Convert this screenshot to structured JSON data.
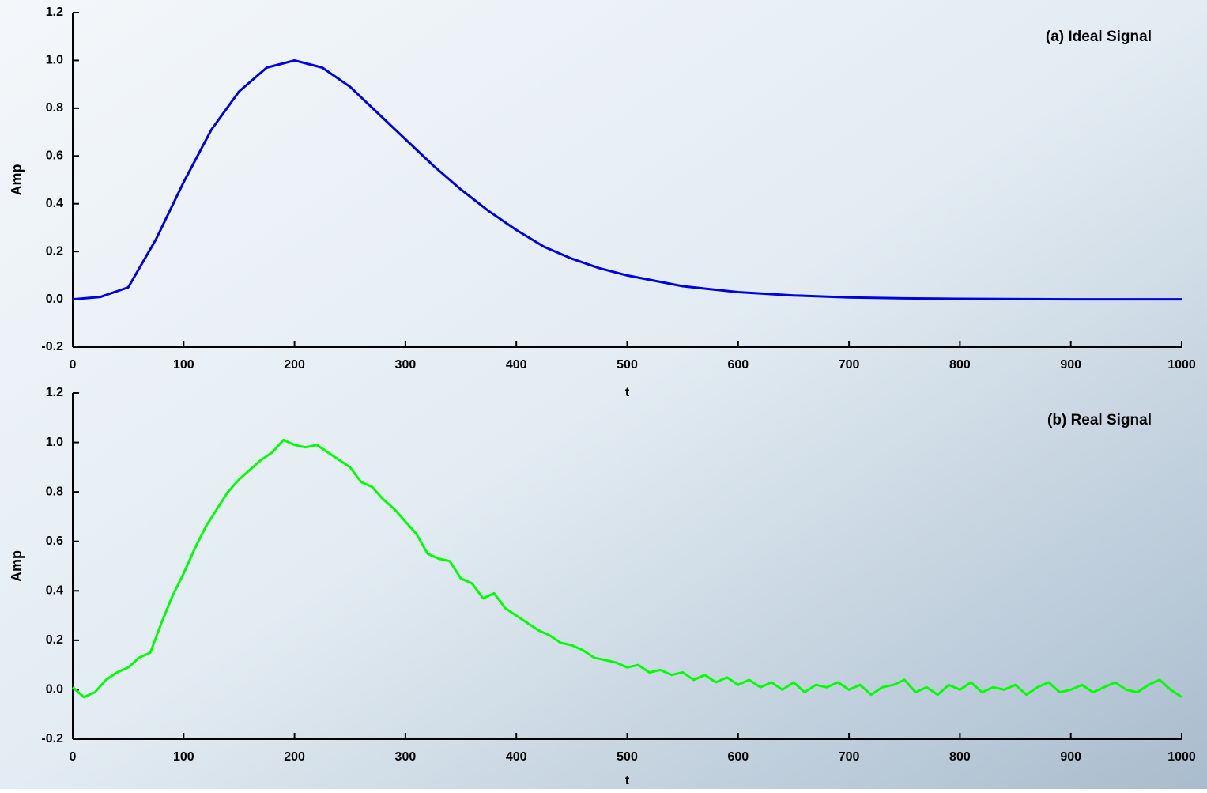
{
  "chart_data": [
    {
      "type": "line",
      "title": "(a)  Ideal Signal",
      "x_label": "t",
      "y_label": "Amp",
      "color": "#0000e0",
      "x": [
        0,
        25,
        50,
        75,
        100,
        125,
        150,
        175,
        200,
        225,
        250,
        275,
        300,
        325,
        350,
        375,
        400,
        425,
        450,
        475,
        500,
        550,
        600,
        650,
        700,
        750,
        800,
        900,
        1000
      ],
      "values": [
        0,
        0.01,
        0.05,
        0.25,
        0.49,
        0.71,
        0.87,
        0.97,
        1.0,
        0.97,
        0.89,
        0.78,
        0.67,
        0.56,
        0.46,
        0.37,
        0.29,
        0.22,
        0.17,
        0.13,
        0.1,
        0.055,
        0.03,
        0.016,
        0.008,
        0.004,
        0.002,
        0,
        0
      ],
      "xlim": [
        0,
        1000
      ],
      "xticks": [
        0,
        100,
        200,
        300,
        400,
        500,
        600,
        700,
        800,
        900,
        1000
      ],
      "ylim": [
        -0.2,
        1.2
      ],
      "yticks": [
        -0.2,
        {
          "value": 0,
          "label": "0.0"
        },
        0.2,
        0.4,
        0.6,
        0.8,
        {
          "value": 1,
          "label": "1.0"
        },
        1.2
      ]
    },
    {
      "type": "line",
      "title": "(b)  Real Signal",
      "x_label": "t",
      "y_label": "Amp",
      "color": "#00ff00",
      "x": [
        0,
        10,
        20,
        30,
        40,
        50,
        60,
        70,
        80,
        90,
        100,
        110,
        120,
        130,
        140,
        150,
        160,
        170,
        180,
        190,
        200,
        210,
        220,
        230,
        240,
        250,
        260,
        270,
        280,
        290,
        300,
        310,
        320,
        330,
        340,
        350,
        360,
        370,
        380,
        390,
        400,
        410,
        420,
        430,
        440,
        450,
        460,
        470,
        480,
        490,
        500,
        510,
        520,
        530,
        540,
        550,
        560,
        570,
        580,
        590,
        600,
        610,
        620,
        630,
        640,
        650,
        660,
        670,
        680,
        690,
        700,
        710,
        720,
        730,
        740,
        750,
        760,
        770,
        780,
        790,
        800,
        810,
        820,
        830,
        840,
        850,
        860,
        870,
        880,
        890,
        900,
        910,
        920,
        930,
        940,
        950,
        960,
        970,
        980,
        990,
        1000
      ],
      "values": [
        0.01,
        -0.03,
        -0.01,
        0.04,
        0.07,
        0.09,
        0.13,
        0.15,
        0.27,
        0.38,
        0.47,
        0.57,
        0.66,
        0.73,
        0.8,
        0.85,
        0.89,
        0.93,
        0.96,
        1.01,
        0.99,
        0.98,
        0.99,
        0.96,
        0.93,
        0.9,
        0.84,
        0.82,
        0.77,
        0.73,
        0.68,
        0.63,
        0.55,
        0.53,
        0.52,
        0.45,
        0.43,
        0.37,
        0.39,
        0.33,
        0.3,
        0.27,
        0.24,
        0.22,
        0.19,
        0.18,
        0.16,
        0.13,
        0.12,
        0.11,
        0.09,
        0.1,
        0.07,
        0.08,
        0.06,
        0.07,
        0.04,
        0.06,
        0.03,
        0.05,
        0.02,
        0.04,
        0.01,
        0.03,
        0,
        0.03,
        -0.01,
        0.02,
        0.01,
        0.03,
        0,
        0.02,
        -0.02,
        0.01,
        0.02,
        0.04,
        -0.01,
        0.01,
        -0.02,
        0.02,
        0,
        0.03,
        -0.01,
        0.01,
        0,
        0.02,
        -0.02,
        0.01,
        0.03,
        -0.01,
        0,
        0.02,
        -0.01,
        0.01,
        0.03,
        0,
        -0.01,
        0.02,
        0.04,
        0,
        -0.03
      ],
      "xlim": [
        0,
        1000
      ],
      "xticks": [
        0,
        100,
        200,
        300,
        400,
        500,
        600,
        700,
        800,
        900,
        1000
      ],
      "ylim": [
        -0.2,
        1.2
      ],
      "yticks": [
        -0.2,
        {
          "value": 0,
          "label": "0.0"
        },
        0.2,
        0.4,
        0.6,
        0.8,
        {
          "value": 1,
          "label": "1.0"
        },
        1.2
      ]
    }
  ]
}
